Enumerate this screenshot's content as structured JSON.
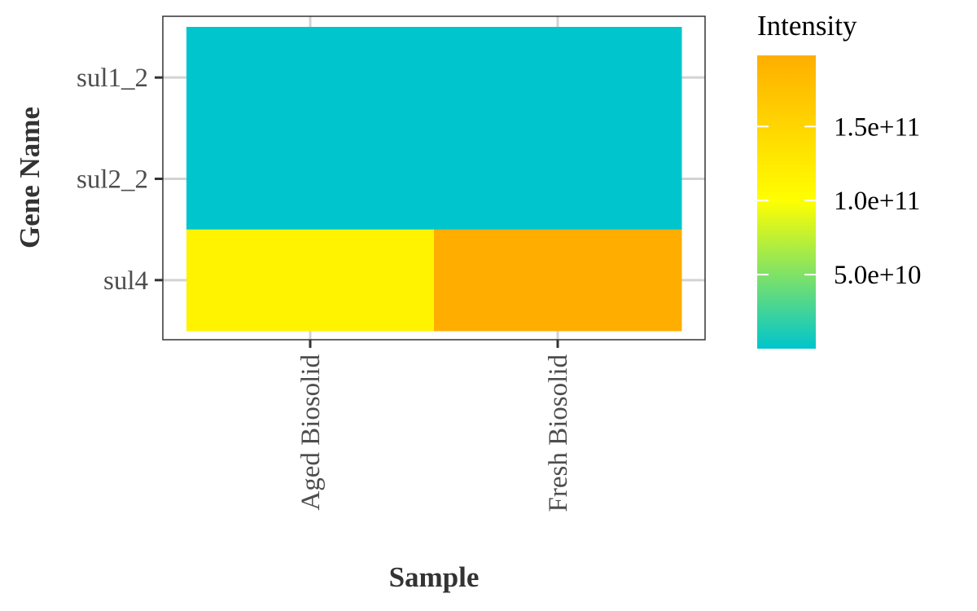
{
  "chart_data": {
    "type": "heatmap",
    "title": "",
    "xlabel": "Sample",
    "ylabel": "Gene Name",
    "x_categories": [
      "Aged Biosolid",
      "Fresh Biosolid"
    ],
    "y_categories": [
      "sul1_2",
      "sul2_2",
      "sul4"
    ],
    "values": [
      {
        "x": "Aged Biosolid",
        "y": "sul1_2",
        "value": 0
      },
      {
        "x": "Fresh Biosolid",
        "y": "sul1_2",
        "value": 0
      },
      {
        "x": "Aged Biosolid",
        "y": "sul2_2",
        "value": 0
      },
      {
        "x": "Fresh Biosolid",
        "y": "sul2_2",
        "value": 0
      },
      {
        "x": "Aged Biosolid",
        "y": "sul4",
        "value": 115000000000
      },
      {
        "x": "Fresh Biosolid",
        "y": "sul4",
        "value": 198000000000
      }
    ],
    "legend": {
      "title": "Intensity",
      "placement": "right",
      "ticks": [
        {
          "value": 50000000000,
          "label": "5.0e+10"
        },
        {
          "value": 100000000000,
          "label": "1.0e+11"
        },
        {
          "value": 150000000000,
          "label": "1.5e+11"
        }
      ],
      "range": [
        0,
        198000000000
      ],
      "color_stops": [
        {
          "value": 0,
          "color": "#00C5CD"
        },
        {
          "value": 100000000000,
          "color": "#FFFF00"
        },
        {
          "value": 198000000000,
          "color": "#FFAE00"
        }
      ]
    },
    "grid": true,
    "colors": {
      "panel_border": "#333333",
      "grid": "#d3d3d3",
      "tick": "#333333"
    }
  }
}
